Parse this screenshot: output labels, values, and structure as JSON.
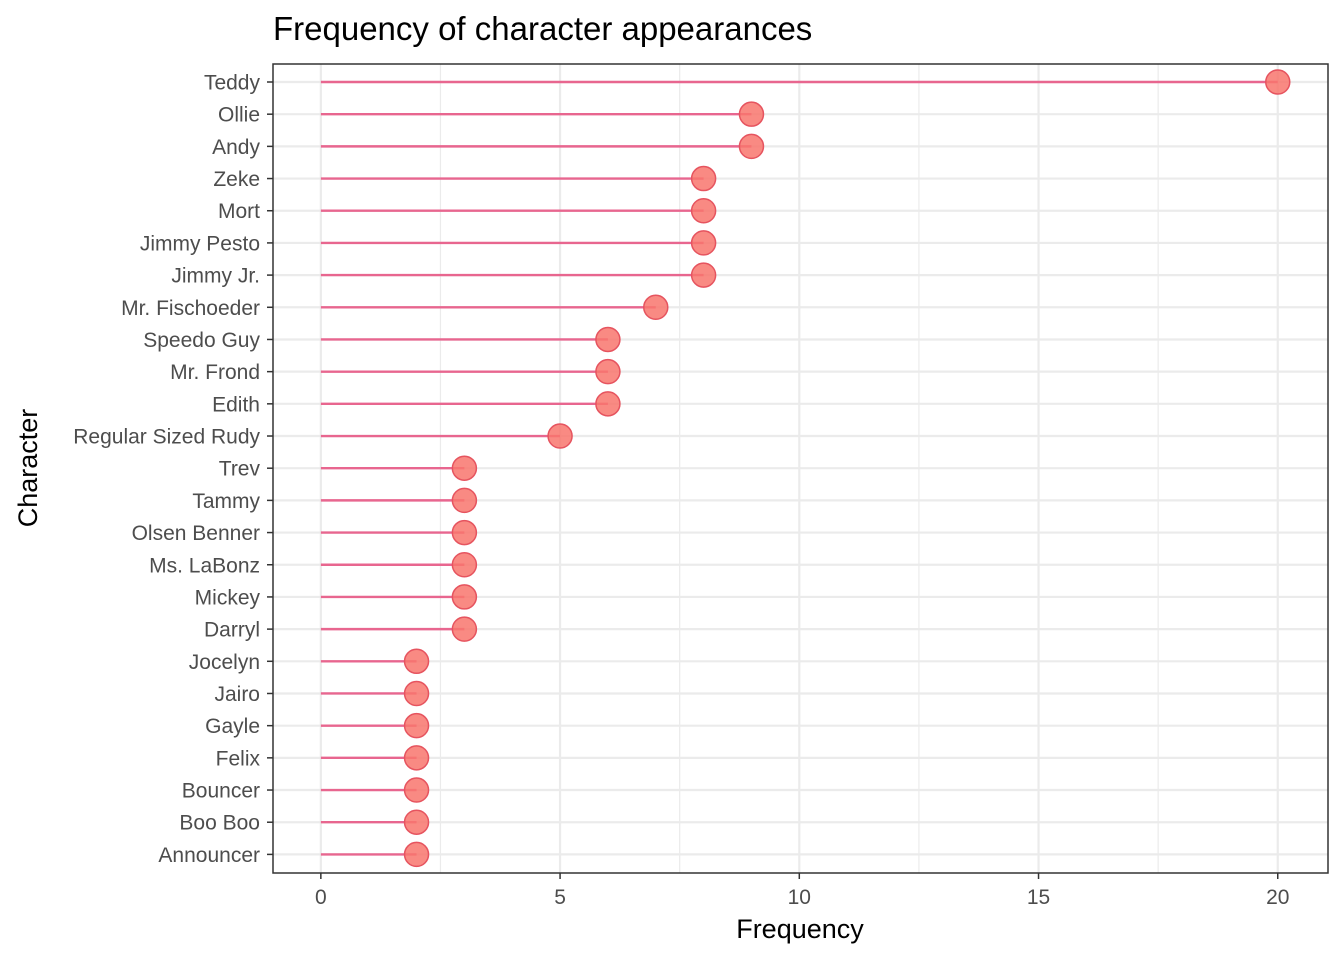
{
  "chart_data": {
    "type": "lollipop",
    "title": "Frequency of character appearances",
    "xlabel": "Frequency",
    "ylabel": "Character",
    "xlim": [
      -1,
      21.05
    ],
    "x_ticks": [
      0,
      5,
      10,
      15,
      20
    ],
    "x_tick_labels": [
      "0",
      "5",
      "10",
      "15",
      "20"
    ],
    "grid": true,
    "orientation": "horizontal",
    "colors": {
      "stem": "#e8668f",
      "point_fill": "#f8766d",
      "point_stroke": "#e6545f",
      "grid": "#ebebeb",
      "panel_border": "#333333"
    },
    "categories": [
      "Teddy",
      "Ollie",
      "Andy",
      "Zeke",
      "Mort",
      "Jimmy Pesto",
      "Jimmy Jr.",
      "Mr. Fischoeder",
      "Speedo Guy",
      "Mr. Frond",
      "Edith",
      "Regular Sized Rudy",
      "Trev",
      "Tammy",
      "Olsen Benner",
      "Ms. LaBonz",
      "Mickey",
      "Darryl",
      "Jocelyn",
      "Jairo",
      "Gayle",
      "Felix",
      "Bouncer",
      "Boo Boo",
      "Announcer"
    ],
    "values": [
      20,
      9,
      9,
      8,
      8,
      8,
      8,
      7,
      6,
      6,
      6,
      5,
      3,
      3,
      3,
      3,
      3,
      3,
      2,
      2,
      2,
      2,
      2,
      2,
      2
    ]
  }
}
